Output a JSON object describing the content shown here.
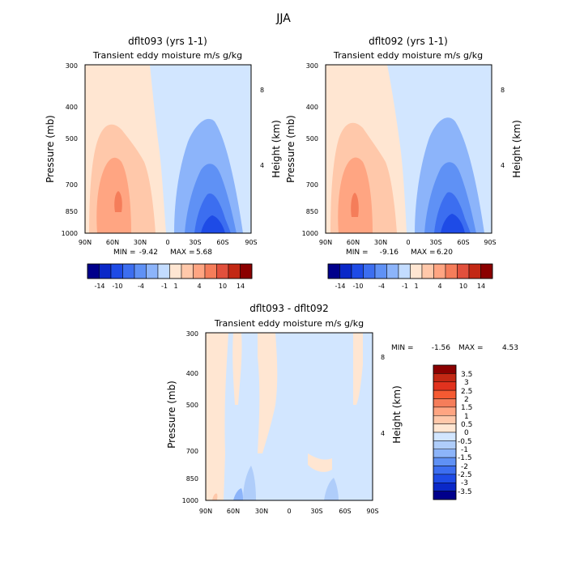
{
  "title": "JJA",
  "colors": {
    "main_palette": [
      "#00008b",
      "#0a28c8",
      "#1e4be6",
      "#3c6ef0",
      "#5f91f5",
      "#8cb4fa",
      "#c3dcff",
      "#ffe6d2",
      "#ffc8aa",
      "#ffa582",
      "#f57d5a",
      "#e1503c",
      "#c32814",
      "#8b0000"
    ],
    "diff_palette": [
      "#8b0000",
      "#c32814",
      "#e1321e",
      "#f55a32",
      "#f57d5a",
      "#ffa582",
      "#ffc8aa",
      "#ffe6d2",
      "#d2e6ff",
      "#afcdfa",
      "#8cb4fa",
      "#5f91f5",
      "#3c6ef0",
      "#1e4be6",
      "#0a28c8",
      "#00008b"
    ]
  },
  "chart_data": [
    {
      "type": "heatmap",
      "id": "p1",
      "title": "dflt093 (yrs 1-1)",
      "subtitle": "Transient eddy moisture m/s g/kg",
      "ylabel": "Pressure (mb)",
      "ylabel_right": "Height (km)",
      "x_ticks": [
        "90N",
        "60N",
        "30N",
        "0",
        "30S",
        "60S",
        "90S"
      ],
      "y_ticks": [
        "300",
        "400",
        "500",
        "700",
        "850",
        "1000"
      ],
      "y_ticks_right": [
        "8",
        "4"
      ],
      "xlim": [
        90,
        -90
      ],
      "ylim": [
        1000,
        300
      ],
      "min_label": "MIN =",
      "min_value": "-9.42",
      "max_label": "MAX =",
      "max_value": "5.68",
      "colorbar_labels": [
        "-14",
        "-10",
        "-4",
        "-1",
        "1",
        "4",
        "10",
        "14"
      ]
    },
    {
      "type": "heatmap",
      "id": "p2",
      "title": "dflt092 (yrs 1-1)",
      "subtitle": "Transient eddy moisture m/s g/kg",
      "ylabel": "Pressure (mb)",
      "ylabel_right": "Height (km)",
      "x_ticks": [
        "90N",
        "60N",
        "30N",
        "0",
        "30S",
        "60S",
        "90S"
      ],
      "y_ticks": [
        "300",
        "400",
        "500",
        "700",
        "850",
        "1000"
      ],
      "y_ticks_right": [
        "8",
        "4"
      ],
      "xlim": [
        90,
        -90
      ],
      "ylim": [
        1000,
        300
      ],
      "min_label": "MIN =",
      "min_value": "-9.16",
      "max_label": "MAX =",
      "max_value": "6.20",
      "colorbar_labels": [
        "-14",
        "-10",
        "-4",
        "-1",
        "1",
        "4",
        "10",
        "14"
      ]
    },
    {
      "type": "heatmap",
      "id": "p3",
      "title": "dflt093 - dflt092",
      "subtitle": "Transient eddy moisture m/s g/kg",
      "ylabel": "Pressure (mb)",
      "ylabel_right": "Height (km)",
      "x_ticks": [
        "90N",
        "60N",
        "30N",
        "0",
        "30S",
        "60S",
        "90S"
      ],
      "y_ticks": [
        "300",
        "400",
        "500",
        "700",
        "850",
        "1000"
      ],
      "y_ticks_right": [
        "8",
        "4"
      ],
      "xlim": [
        90,
        -90
      ],
      "ylim": [
        1000,
        300
      ],
      "min_label": "MIN =",
      "min_value": "-1.56",
      "max_label": "MAX =",
      "max_value": "4.53",
      "colorbar_labels": [
        "3.5",
        "3",
        "2.5",
        "2",
        "1.5",
        "1",
        "0.5",
        "0",
        "-0.5",
        "-1",
        "-1.5",
        "-2",
        "-2.5",
        "-3",
        "-3.5"
      ]
    }
  ]
}
